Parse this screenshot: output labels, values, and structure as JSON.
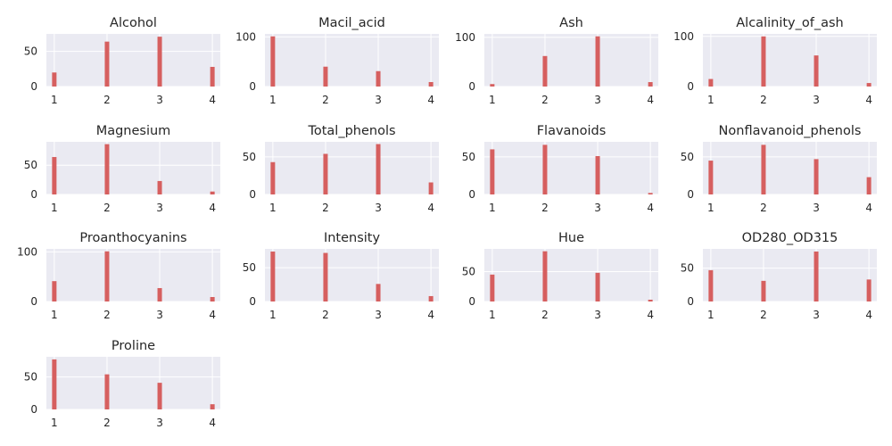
{
  "chart_data": [
    {
      "type": "bar",
      "title": "Alcohol",
      "x": [
        1,
        2,
        3,
        4
      ],
      "values": [
        20,
        64,
        71,
        28
      ],
      "xticks": [
        "1",
        "2",
        "3",
        "4"
      ],
      "yticks": [
        0,
        50
      ],
      "ylim": [
        0,
        75
      ],
      "color": "#d65f5f",
      "background": "#eaeaf2",
      "grid": true
    },
    {
      "type": "bar",
      "title": "Macil_acid",
      "x": [
        1,
        2,
        3,
        4
      ],
      "values": [
        101,
        40,
        31,
        9
      ],
      "xticks": [
        "1",
        "2",
        "3",
        "4"
      ],
      "yticks": [
        0,
        100
      ],
      "ylim": [
        0,
        106
      ],
      "color": "#d65f5f",
      "background": "#eaeaf2",
      "grid": true
    },
    {
      "type": "bar",
      "title": "Ash",
      "x": [
        1,
        2,
        3,
        4
      ],
      "values": [
        5,
        62,
        102,
        9
      ],
      "xticks": [
        "1",
        "2",
        "3",
        "4"
      ],
      "yticks": [
        0,
        100
      ],
      "ylim": [
        0,
        107
      ],
      "color": "#d65f5f",
      "background": "#eaeaf2",
      "grid": true
    },
    {
      "type": "bar",
      "title": "Alcalinity_of_ash",
      "x": [
        1,
        2,
        3,
        4
      ],
      "values": [
        15,
        100,
        62,
        7
      ],
      "xticks": [
        "1",
        "2",
        "3",
        "4"
      ],
      "yticks": [
        0,
        100
      ],
      "ylim": [
        0,
        105
      ],
      "color": "#d65f5f",
      "background": "#eaeaf2",
      "grid": true
    },
    {
      "type": "bar",
      "title": "Magnesium",
      "x": [
        1,
        2,
        3,
        4
      ],
      "values": [
        64,
        86,
        23,
        5
      ],
      "xticks": [
        "1",
        "2",
        "3",
        "4"
      ],
      "yticks": [
        0,
        50
      ],
      "ylim": [
        0,
        90
      ],
      "color": "#d65f5f",
      "background": "#eaeaf2",
      "grid": true
    },
    {
      "type": "bar",
      "title": "Total_phenols",
      "x": [
        1,
        2,
        3,
        4
      ],
      "values": [
        43,
        54,
        67,
        16
      ],
      "xticks": [
        "1",
        "2",
        "3",
        "4"
      ],
      "yticks": [
        0,
        50
      ],
      "ylim": [
        0,
        70
      ],
      "color": "#d65f5f",
      "background": "#eaeaf2",
      "grid": true
    },
    {
      "type": "bar",
      "title": "Flavanoids",
      "x": [
        1,
        2,
        3,
        4
      ],
      "values": [
        60,
        66,
        51,
        2
      ],
      "xticks": [
        "1",
        "2",
        "3",
        "4"
      ],
      "yticks": [
        0,
        50
      ],
      "ylim": [
        0,
        70
      ],
      "color": "#d65f5f",
      "background": "#eaeaf2",
      "grid": true
    },
    {
      "type": "bar",
      "title": "Nonflavanoid_phenols",
      "x": [
        1,
        2,
        3,
        4
      ],
      "values": [
        45,
        66,
        47,
        23
      ],
      "xticks": [
        "1",
        "2",
        "3",
        "4"
      ],
      "yticks": [
        0,
        50
      ],
      "ylim": [
        0,
        70
      ],
      "color": "#d65f5f",
      "background": "#eaeaf2",
      "grid": true
    },
    {
      "type": "bar",
      "title": "Proanthocyanins",
      "x": [
        1,
        2,
        3,
        4
      ],
      "values": [
        41,
        101,
        27,
        9
      ],
      "xticks": [
        "1",
        "2",
        "3",
        "4"
      ],
      "yticks": [
        0,
        100
      ],
      "ylim": [
        0,
        106
      ],
      "color": "#d65f5f",
      "background": "#eaeaf2",
      "grid": true
    },
    {
      "type": "bar",
      "title": "Intensity",
      "x": [
        1,
        2,
        3,
        4
      ],
      "values": [
        74,
        72,
        26,
        8
      ],
      "xticks": [
        "1",
        "2",
        "3",
        "4"
      ],
      "yticks": [
        0,
        50
      ],
      "ylim": [
        0,
        78
      ],
      "color": "#d65f5f",
      "background": "#eaeaf2",
      "grid": true
    },
    {
      "type": "bar",
      "title": "Hue",
      "x": [
        1,
        2,
        3,
        4
      ],
      "values": [
        45,
        84,
        48,
        3
      ],
      "xticks": [
        "1",
        "2",
        "3",
        "4"
      ],
      "yticks": [
        0,
        50
      ],
      "ylim": [
        0,
        88
      ],
      "color": "#d65f5f",
      "background": "#eaeaf2",
      "grid": true
    },
    {
      "type": "bar",
      "title": "OD280_OD315",
      "x": [
        1,
        2,
        3,
        4
      ],
      "values": [
        47,
        31,
        75,
        33
      ],
      "xticks": [
        "1",
        "2",
        "3",
        "4"
      ],
      "yticks": [
        0,
        50
      ],
      "ylim": [
        0,
        79
      ],
      "color": "#d65f5f",
      "background": "#eaeaf2",
      "grid": true
    },
    {
      "type": "bar",
      "title": "Proline",
      "x": [
        1,
        2,
        3,
        4
      ],
      "values": [
        77,
        54,
        41,
        8
      ],
      "xticks": [
        "1",
        "2",
        "3",
        "4"
      ],
      "yticks": [
        0,
        50
      ],
      "ylim": [
        0,
        81
      ],
      "color": "#d65f5f",
      "background": "#eaeaf2",
      "grid": true
    }
  ]
}
